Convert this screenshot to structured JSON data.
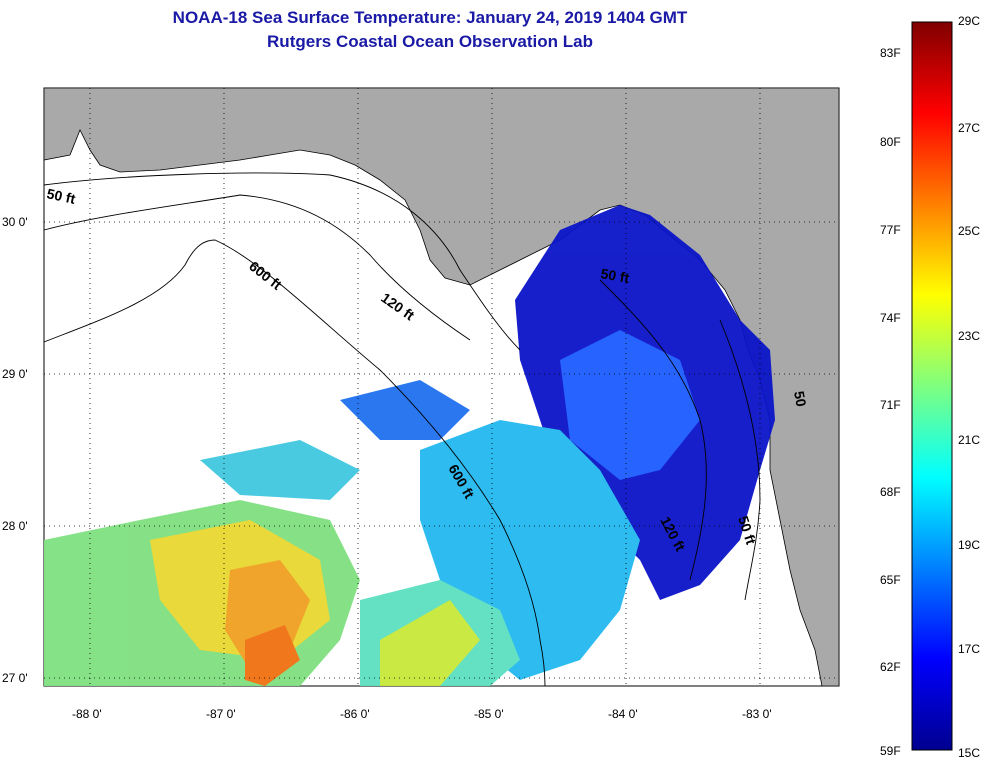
{
  "title": {
    "line1": "NOAA-18 Sea Surface Temperature:  January 24, 2019 1404 GMT",
    "line2": "Rutgers Coastal Ocean Observation Lab"
  },
  "map": {
    "lon_ticks": [
      "-88 0'",
      "-87 0'",
      "-86 0'",
      "-85 0'",
      "-84 0'",
      "-83 0'"
    ],
    "lat_ticks": [
      "30 0'",
      "29 0'",
      "28 0'",
      "27 0'"
    ],
    "contour_labels": [
      "50 ft",
      "600 ft",
      "120 ft",
      "50 ft",
      "600 ft",
      "120 ft",
      "50 ft",
      "50"
    ],
    "colors": {
      "land": "#a9a9a9",
      "ocean_missing": "#ffffff",
      "contour": "#000000"
    }
  },
  "colorbar": {
    "celsius": [
      "29C",
      "27C",
      "25C",
      "23C",
      "21C",
      "19C",
      "17C",
      "15C"
    ],
    "fahrenheit": [
      "83F",
      "80F",
      "77F",
      "74F",
      "71F",
      "68F",
      "65F",
      "62F",
      "59F"
    ],
    "colormap": "jet"
  }
}
